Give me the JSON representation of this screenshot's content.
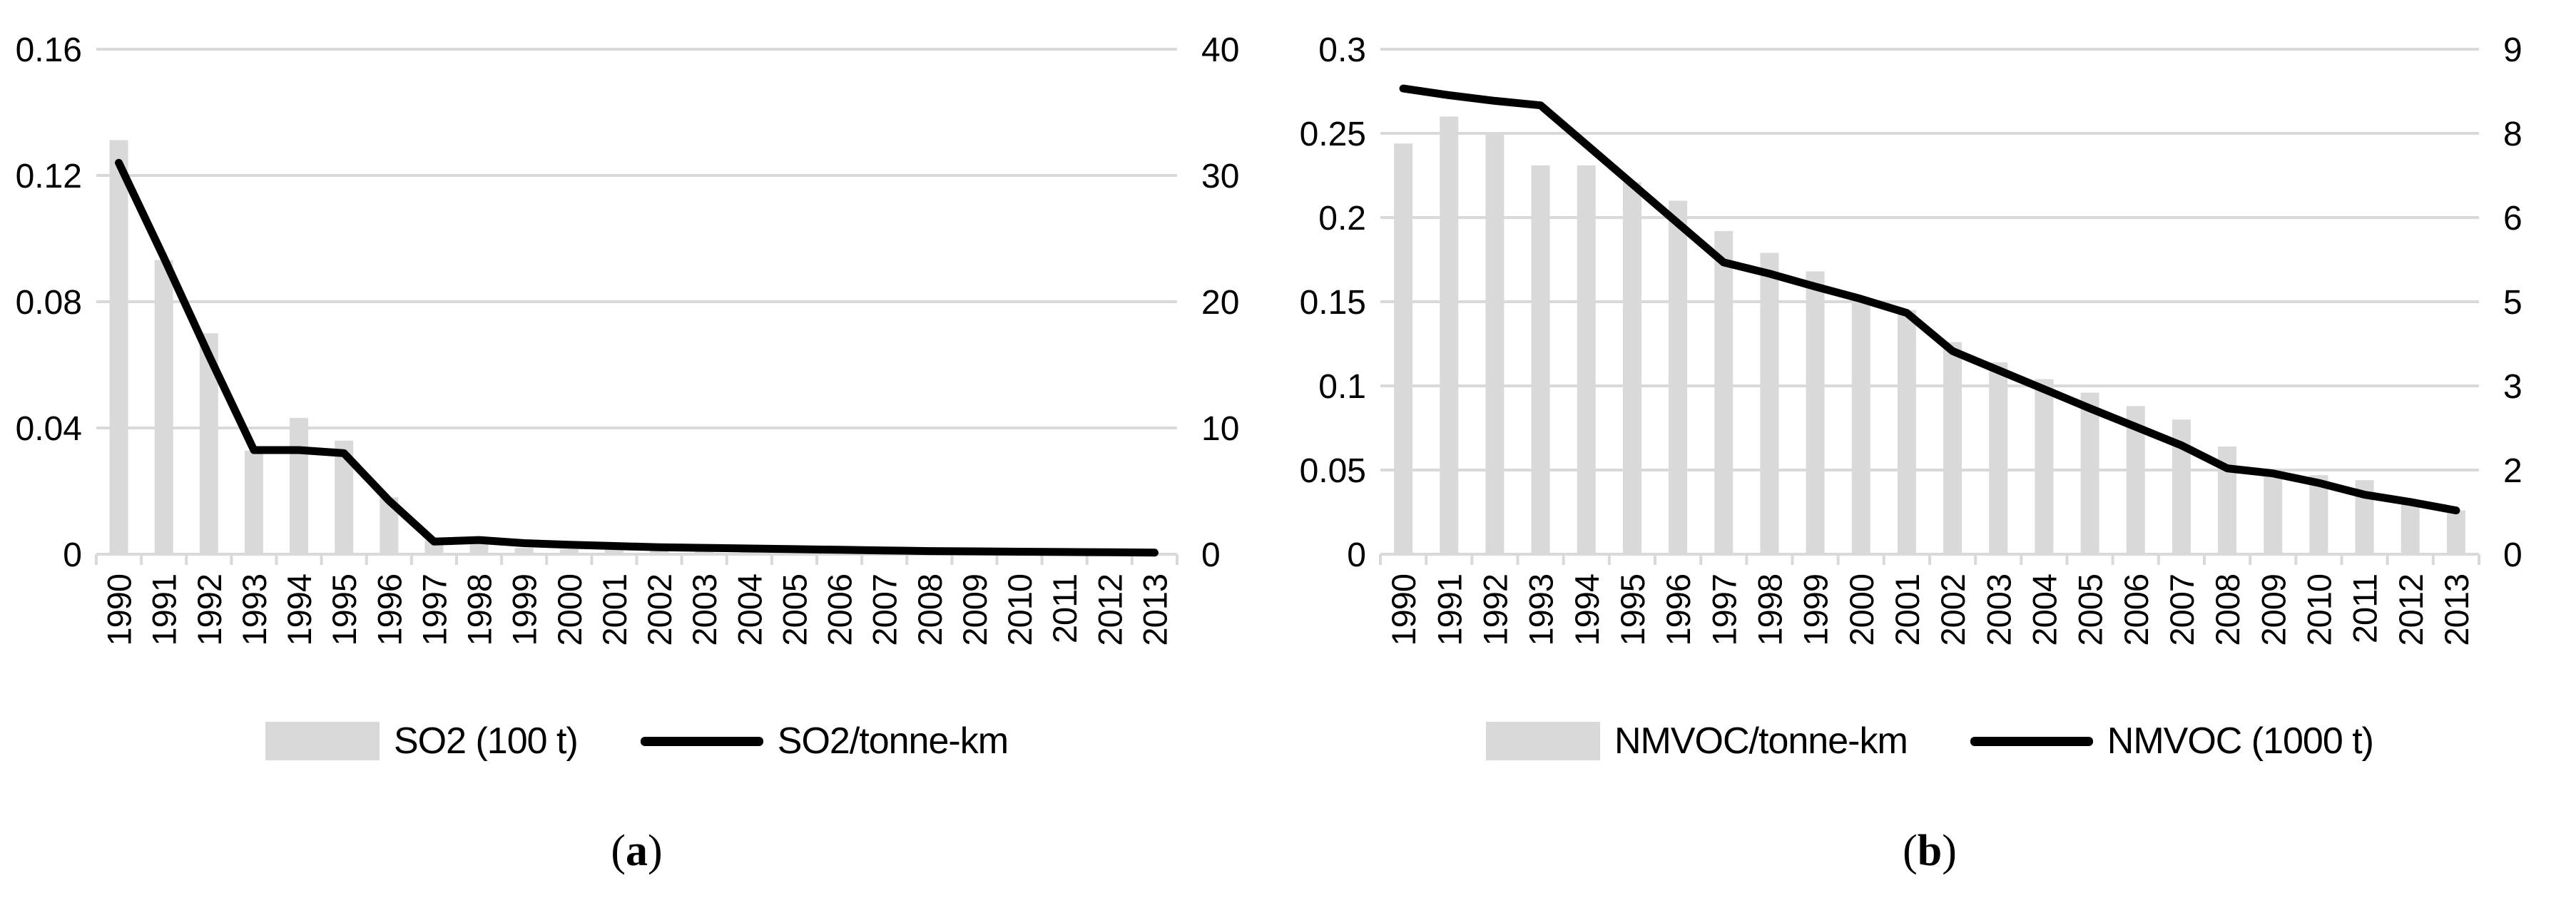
{
  "colors": {
    "bar_fill": "#d9d9d9",
    "gridline": "#d9d9d9",
    "trend_line": "#000000",
    "text": "#000000",
    "background": "#ffffff"
  },
  "chart_data": [
    {
      "id": "a",
      "type": "bar+line",
      "caption": {
        "open": "(",
        "label": "a",
        "close": ")"
      },
      "categories": [
        "1990",
        "1991",
        "1992",
        "1993",
        "1994",
        "1995",
        "1996",
        "1997",
        "1998",
        "1999",
        "2000",
        "2001",
        "2002",
        "2003",
        "2004",
        "2005",
        "2006",
        "2007",
        "2008",
        "2009",
        "2010",
        "2011",
        "2012",
        "2013"
      ],
      "left_axis": {
        "min": 0,
        "max": 0.16,
        "labels": [
          "0.16",
          "0.12",
          "0.08",
          "0.04",
          "0"
        ]
      },
      "right_axis": {
        "min": 0,
        "max": 40,
        "labels": [
          "40",
          "30",
          "20",
          "10",
          "0"
        ]
      },
      "grid": true,
      "legend_position": "bottom",
      "series": [
        {
          "name": "SO2 (100 t)",
          "type": "bar",
          "axis": "right",
          "values": [
            32.8,
            23.3,
            17.5,
            8.2,
            10.8,
            9.0,
            4.5,
            1.1,
            0.8,
            0.5,
            0.4,
            0.35,
            0.3,
            0.28,
            0.25,
            0.22,
            0.2,
            0.18,
            0.16,
            0.14,
            0.13,
            0.12,
            0.11,
            0.1
          ]
        },
        {
          "name": "SO2/tonne-km",
          "type": "line",
          "axis": "left",
          "values": [
            0.124,
            0.094,
            0.063,
            0.033,
            0.033,
            0.032,
            0.017,
            0.004,
            0.0045,
            0.0035,
            0.003,
            0.0026,
            0.0022,
            0.002,
            0.0018,
            0.0016,
            0.0014,
            0.0012,
            0.001,
            0.0009,
            0.0008,
            0.0007,
            0.0006,
            0.0005
          ]
        }
      ]
    },
    {
      "id": "b",
      "type": "bar+line",
      "caption": {
        "open": "(",
        "label": "b",
        "close": ")"
      },
      "categories": [
        "1990",
        "1991",
        "1992",
        "1993",
        "1994",
        "1995",
        "1996",
        "1997",
        "1998",
        "1999",
        "2000",
        "2001",
        "2002",
        "2003",
        "2004",
        "2005",
        "2006",
        "2007",
        "2008",
        "2009",
        "2010",
        "2011",
        "2012",
        "2013"
      ],
      "left_axis": {
        "min": 0,
        "max": 0.3,
        "labels": [
          "0.3",
          "0.25",
          "0.2",
          "0.15",
          "0.1",
          "0.05",
          "0"
        ]
      },
      "right_axis": {
        "min": 0,
        "max": 9,
        "labels": [
          "9",
          "8",
          "6",
          "5",
          "3",
          "2",
          "0"
        ]
      },
      "grid": true,
      "legend_position": "bottom",
      "series": [
        {
          "name": "NMVOC/tonne-km",
          "type": "bar",
          "axis": "left",
          "values": [
            0.244,
            0.26,
            0.25,
            0.231,
            0.231,
            0.221,
            0.21,
            0.192,
            0.179,
            0.168,
            0.152,
            0.145,
            0.126,
            0.114,
            0.104,
            0.096,
            0.088,
            0.08,
            0.064,
            0.048,
            0.047,
            0.044,
            0.031,
            0.026
          ]
        },
        {
          "name": "NMVOC (1000 t)",
          "type": "line",
          "axis": "right",
          "values": [
            8.3,
            8.18,
            8.08,
            8.0,
            7.3,
            6.6,
            5.9,
            5.2,
            5.0,
            4.77,
            4.55,
            4.3,
            3.62,
            3.28,
            2.94,
            2.6,
            2.27,
            1.94,
            1.53,
            1.44,
            1.27,
            1.06,
            0.93,
            0.78
          ]
        }
      ]
    }
  ]
}
